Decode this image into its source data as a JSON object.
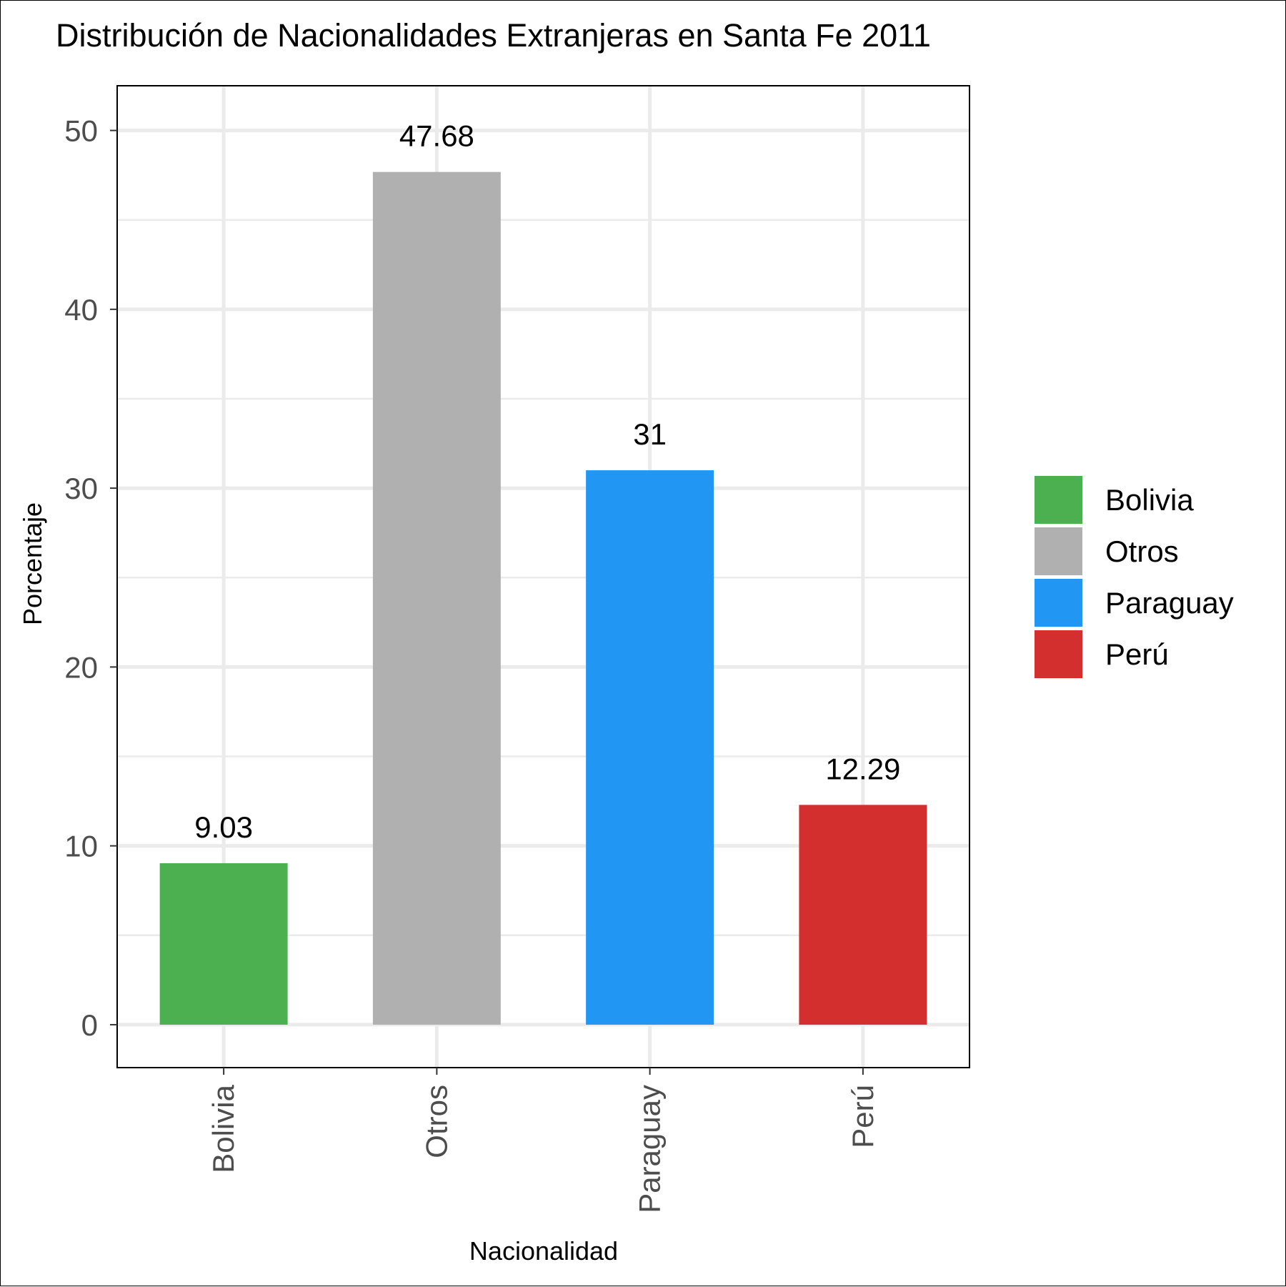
{
  "chart_data": {
    "type": "bar",
    "title": "Distribución de Nacionalidades Extranjeras en Santa Fe 2011",
    "xlabel": "Nacionalidad",
    "ylabel": "Porcentaje",
    "categories": [
      "Bolivia",
      "Otros",
      "Paraguay",
      "Perú"
    ],
    "values": [
      9.03,
      47.68,
      31,
      12.29
    ],
    "data_labels": [
      "9.03",
      "47.68",
      "31",
      "12.29"
    ],
    "colors": [
      "#4caf50",
      "#b0b0b0",
      "#2196f3",
      "#d32f2f"
    ],
    "ylim": [
      -2.4,
      52.5
    ],
    "yticks": [
      0,
      10,
      20,
      30,
      40,
      50
    ],
    "grid": true,
    "legend": {
      "position": "right",
      "entries": [
        "Bolivia",
        "Otros",
        "Paraguay",
        "Perú"
      ]
    }
  }
}
